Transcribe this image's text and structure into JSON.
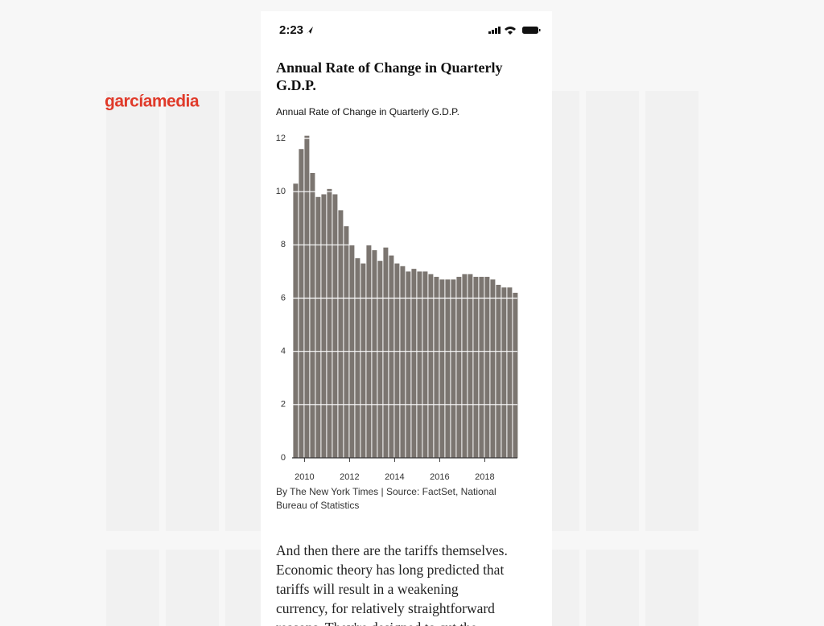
{
  "status": {
    "time": "2:23"
  },
  "brand": "garcíamedia",
  "chart_data": {
    "type": "bar",
    "title": "Annual Rate of Change in Quarterly G.D.P.",
    "subtitle": "Annual Rate of Change in Quarterly G.D.P.",
    "source": [
      "By The New York Times | Source: FactSet, National",
      "Bureau of Statistics"
    ],
    "x": [
      2009.5,
      2009.75,
      2010,
      2010.25,
      2010.5,
      2010.75,
      2011,
      2011.25,
      2011.5,
      2011.75,
      2012,
      2012.25,
      2012.5,
      2012.75,
      2013,
      2013.25,
      2013.5,
      2013.75,
      2014,
      2014.25,
      2014.5,
      2014.75,
      2015,
      2015.25,
      2015.5,
      2015.75,
      2016,
      2016.25,
      2016.5,
      2016.75,
      2017,
      2017.25,
      2017.5,
      2017.75,
      2018,
      2018.25,
      2018.5,
      2018.75,
      2019,
      2019.25
    ],
    "values": [
      10.3,
      11.6,
      12.1,
      10.7,
      9.8,
      9.9,
      10.1,
      9.9,
      9.3,
      8.7,
      8.0,
      7.5,
      7.3,
      8.0,
      7.8,
      7.4,
      7.9,
      7.6,
      7.3,
      7.2,
      7.0,
      7.1,
      7.0,
      7.0,
      6.9,
      6.8,
      6.7,
      6.7,
      6.7,
      6.8,
      6.9,
      6.9,
      6.8,
      6.8,
      6.8,
      6.7,
      6.5,
      6.4,
      6.4,
      6.2
    ],
    "color": "#7b7570",
    "xlim": [
      2009.45,
      2019.45
    ],
    "xticks": [
      2010,
      2012,
      2014,
      2016,
      2018
    ],
    "ylim": [
      0,
      12
    ],
    "yticks": [
      0,
      2,
      4,
      6,
      8,
      10,
      12
    ],
    "grid": true
  },
  "article": {
    "lines": [
      "And then there are the tariffs themselves.",
      "Economic theory has long predicted that",
      "tariffs will result in a weakening",
      "currency, for relatively straightforward",
      "reasons. They're designed to cut the"
    ]
  }
}
